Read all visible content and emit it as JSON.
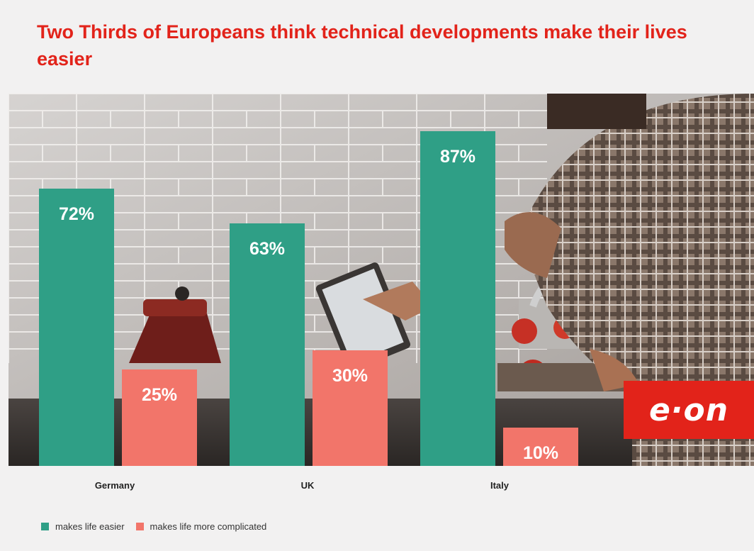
{
  "title": "Two Thirds of Europeans think technical developments make their lives easier",
  "logo": {
    "text": "e·on"
  },
  "colors": {
    "easier": "#2f9f86",
    "complicated": "#f2756a",
    "title": "#e2231a",
    "logo_bg": "#e2231a"
  },
  "chart_data": {
    "type": "bar",
    "categories": [
      "Germany",
      "UK",
      "Italy"
    ],
    "series": [
      {
        "name": "makes life easier",
        "values": [
          72,
          63,
          87
        ],
        "labels": [
          "72%",
          "63%",
          "87%"
        ],
        "color": "#2f9f86"
      },
      {
        "name": "makes life more complicated",
        "values": [
          25,
          30,
          10
        ],
        "labels": [
          "25%",
          "30%",
          "10%"
        ],
        "color": "#f2756a"
      }
    ],
    "ylim": [
      0,
      100
    ],
    "grid": false,
    "legend_position": "bottom-left"
  }
}
